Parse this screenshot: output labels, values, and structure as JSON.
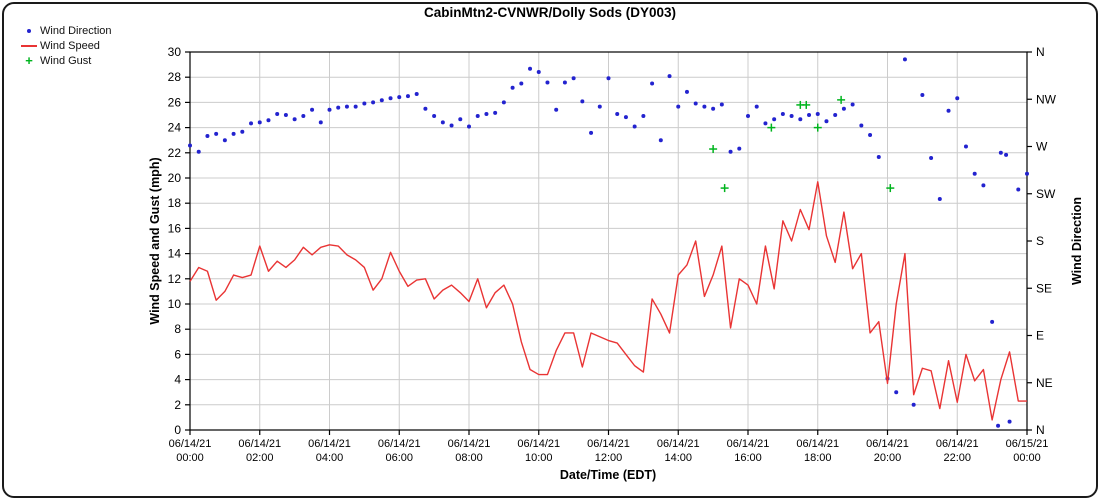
{
  "title": "CabinMtn2-CVNWR/Dolly Sods (DY003)",
  "legend": {
    "items": [
      {
        "label": "Wind Direction",
        "marker": "dot",
        "color": "#2323cf"
      },
      {
        "label": "Wind Speed",
        "marker": "line",
        "color": "#e93434"
      },
      {
        "label": "Wind Gust",
        "marker": "plus",
        "color": "#00b41e"
      }
    ]
  },
  "chart_data": {
    "type": "line+scatter",
    "title": "CabinMtn2-CVNWR/Dolly Sods (DY003)",
    "xlabel": "Date/Time (EDT)",
    "ylabel_left": "Wind Speed and Gust (mph)",
    "ylabel_right": "Wind Direction",
    "ylim_left": [
      0,
      30
    ],
    "ytick_step_left": 2,
    "right_axis_labels_top_to_bottom": [
      "N",
      "NW",
      "W",
      "SW",
      "S",
      "SE",
      "E",
      "NE",
      "N"
    ],
    "x_range_hours": [
      0,
      24
    ],
    "xtick_interval_hours": 2,
    "grid": true,
    "grid_color": "#cccccc",
    "xtick_labels": [
      {
        "date": "06/14/21",
        "time": "00:00"
      },
      {
        "date": "06/14/21",
        "time": "02:00"
      },
      {
        "date": "06/14/21",
        "time": "04:00"
      },
      {
        "date": "06/14/21",
        "time": "06:00"
      },
      {
        "date": "06/14/21",
        "time": "08:00"
      },
      {
        "date": "06/14/21",
        "time": "10:00"
      },
      {
        "date": "06/14/21",
        "time": "12:00"
      },
      {
        "date": "06/14/21",
        "time": "14:00"
      },
      {
        "date": "06/14/21",
        "time": "16:00"
      },
      {
        "date": "06/14/21",
        "time": "18:00"
      },
      {
        "date": "06/14/21",
        "time": "20:00"
      },
      {
        "date": "06/14/21",
        "time": "22:00"
      },
      {
        "date": "06/15/21",
        "time": "00:00"
      }
    ],
    "series": [
      {
        "name": "Wind Direction",
        "type": "scatter",
        "axis": "right",
        "unit": "degrees",
        "color": "#2323cf",
        "points": [
          [
            0,
            271
          ],
          [
            0.25,
            265
          ],
          [
            0.5,
            280
          ],
          [
            0.75,
            282
          ],
          [
            1,
            276
          ],
          [
            1.25,
            282
          ],
          [
            1.5,
            284
          ],
          [
            1.75,
            292
          ],
          [
            2,
            293
          ],
          [
            2.25,
            295
          ],
          [
            2.5,
            301
          ],
          [
            2.75,
            300
          ],
          [
            3,
            296
          ],
          [
            3.25,
            299
          ],
          [
            3.5,
            305
          ],
          [
            3.75,
            293
          ],
          [
            4,
            305
          ],
          [
            4.25,
            307
          ],
          [
            4.5,
            308
          ],
          [
            4.75,
            308
          ],
          [
            5,
            311
          ],
          [
            5.25,
            312
          ],
          [
            5.5,
            314
          ],
          [
            5.75,
            316
          ],
          [
            6,
            317
          ],
          [
            6.25,
            318
          ],
          [
            6.5,
            320
          ],
          [
            6.75,
            306
          ],
          [
            7,
            299
          ],
          [
            7.25,
            293
          ],
          [
            7.5,
            290
          ],
          [
            7.75,
            296
          ],
          [
            8,
            289
          ],
          [
            8.25,
            299
          ],
          [
            8.5,
            301
          ],
          [
            8.75,
            302
          ],
          [
            9,
            312
          ],
          [
            9.25,
            326
          ],
          [
            9.5,
            330
          ],
          [
            9.75,
            344
          ],
          [
            10,
            341
          ],
          [
            10.25,
            331
          ],
          [
            10.5,
            305
          ],
          [
            10.75,
            331
          ],
          [
            11,
            335
          ],
          [
            11.25,
            313
          ],
          [
            11.5,
            283
          ],
          [
            11.75,
            308
          ],
          [
            12,
            335
          ],
          [
            12.25,
            301
          ],
          [
            12.5,
            298
          ],
          [
            12.75,
            289
          ],
          [
            13,
            299
          ],
          [
            13.25,
            330
          ],
          [
            13.5,
            276
          ],
          [
            13.75,
            337
          ],
          [
            14,
            308
          ],
          [
            14.25,
            322
          ],
          [
            14.5,
            311
          ],
          [
            14.75,
            308
          ],
          [
            15,
            306
          ],
          [
            15.25,
            310
          ],
          [
            15.5,
            265
          ],
          [
            15.75,
            268
          ],
          [
            16,
            299
          ],
          [
            16.25,
            308
          ],
          [
            16.5,
            292
          ],
          [
            16.75,
            296
          ],
          [
            17,
            301
          ],
          [
            17.25,
            299
          ],
          [
            17.5,
            296
          ],
          [
            17.75,
            300
          ],
          [
            18,
            301
          ],
          [
            18.25,
            294
          ],
          [
            18.5,
            300
          ],
          [
            18.75,
            306
          ],
          [
            19,
            310
          ],
          [
            19.25,
            290
          ],
          [
            19.5,
            281
          ],
          [
            19.75,
            260
          ],
          [
            20,
            49
          ],
          [
            20.25,
            36
          ],
          [
            20.5,
            353
          ],
          [
            20.75,
            24
          ],
          [
            21,
            319
          ],
          [
            21.25,
            259
          ],
          [
            21.5,
            220
          ],
          [
            21.75,
            304
          ],
          [
            22,
            316
          ],
          [
            22.25,
            270
          ],
          [
            22.5,
            244
          ],
          [
            22.75,
            233
          ],
          [
            23,
            103
          ],
          [
            23.17,
            4
          ],
          [
            23.25,
            264
          ],
          [
            23.4,
            262
          ],
          [
            23.5,
            8
          ],
          [
            23.75,
            229
          ],
          [
            24,
            244
          ]
        ]
      },
      {
        "name": "Wind Speed",
        "type": "line",
        "axis": "left",
        "unit": "mph",
        "color": "#e93434",
        "points": [
          [
            0,
            11.8
          ],
          [
            0.25,
            12.9
          ],
          [
            0.5,
            12.6
          ],
          [
            0.75,
            10.3
          ],
          [
            1,
            11.0
          ],
          [
            1.25,
            12.3
          ],
          [
            1.5,
            12.1
          ],
          [
            1.75,
            12.3
          ],
          [
            2,
            14.6
          ],
          [
            2.25,
            12.6
          ],
          [
            2.5,
            13.4
          ],
          [
            2.75,
            12.9
          ],
          [
            3,
            13.5
          ],
          [
            3.25,
            14.5
          ],
          [
            3.5,
            13.9
          ],
          [
            3.75,
            14.5
          ],
          [
            4,
            14.7
          ],
          [
            4.25,
            14.6
          ],
          [
            4.5,
            13.9
          ],
          [
            4.75,
            13.5
          ],
          [
            5,
            12.9
          ],
          [
            5.25,
            11.1
          ],
          [
            5.5,
            12.0
          ],
          [
            5.75,
            14.1
          ],
          [
            6,
            12.6
          ],
          [
            6.25,
            11.4
          ],
          [
            6.5,
            11.9
          ],
          [
            6.75,
            12.0
          ],
          [
            7,
            10.4
          ],
          [
            7.25,
            11.1
          ],
          [
            7.5,
            11.5
          ],
          [
            7.75,
            10.9
          ],
          [
            8,
            10.2
          ],
          [
            8.25,
            12.0
          ],
          [
            8.5,
            9.7
          ],
          [
            8.75,
            10.9
          ],
          [
            9,
            11.5
          ],
          [
            9.25,
            10.0
          ],
          [
            9.5,
            7.0
          ],
          [
            9.75,
            4.8
          ],
          [
            10,
            4.4
          ],
          [
            10.25,
            4.4
          ],
          [
            10.5,
            6.3
          ],
          [
            10.75,
            7.7
          ],
          [
            11,
            7.7
          ],
          [
            11.25,
            5.0
          ],
          [
            11.5,
            7.7
          ],
          [
            11.75,
            7.4
          ],
          [
            12,
            7.1
          ],
          [
            12.25,
            6.9
          ],
          [
            12.5,
            6.0
          ],
          [
            12.75,
            5.1
          ],
          [
            13,
            4.6
          ],
          [
            13.25,
            10.4
          ],
          [
            13.5,
            9.2
          ],
          [
            13.75,
            7.7
          ],
          [
            14,
            12.3
          ],
          [
            14.25,
            13.1
          ],
          [
            14.5,
            15.0
          ],
          [
            14.75,
            10.6
          ],
          [
            15,
            12.3
          ],
          [
            15.25,
            14.6
          ],
          [
            15.5,
            8.1
          ],
          [
            15.75,
            12.0
          ],
          [
            16,
            11.5
          ],
          [
            16.25,
            10.0
          ],
          [
            16.5,
            14.6
          ],
          [
            16.75,
            11.2
          ],
          [
            17,
            16.6
          ],
          [
            17.25,
            15.0
          ],
          [
            17.5,
            17.5
          ],
          [
            17.75,
            15.9
          ],
          [
            18,
            19.7
          ],
          [
            18.25,
            15.4
          ],
          [
            18.5,
            13.3
          ],
          [
            18.75,
            17.3
          ],
          [
            19,
            12.8
          ],
          [
            19.25,
            14.0
          ],
          [
            19.5,
            7.7
          ],
          [
            19.75,
            8.6
          ],
          [
            20,
            3.7
          ],
          [
            20.25,
            10.0
          ],
          [
            20.5,
            14.0
          ],
          [
            20.75,
            2.8
          ],
          [
            21,
            4.9
          ],
          [
            21.25,
            4.7
          ],
          [
            21.5,
            1.7
          ],
          [
            21.75,
            5.5
          ],
          [
            22,
            2.2
          ],
          [
            22.25,
            6.0
          ],
          [
            22.5,
            3.9
          ],
          [
            22.75,
            4.8
          ],
          [
            23,
            0.8
          ],
          [
            23.25,
            4.0
          ],
          [
            23.5,
            6.2
          ],
          [
            23.75,
            2.3
          ],
          [
            24,
            2.3
          ]
        ]
      },
      {
        "name": "Wind Gust",
        "type": "plus",
        "axis": "left",
        "unit": "mph",
        "color": "#00b41e",
        "points": [
          [
            15,
            22.3
          ],
          [
            15.33,
            19.2
          ],
          [
            16.67,
            24.0
          ],
          [
            17.5,
            25.8
          ],
          [
            17.67,
            25.8
          ],
          [
            18,
            24.0
          ],
          [
            18.67,
            26.2
          ],
          [
            20.08,
            19.2
          ]
        ]
      }
    ]
  }
}
